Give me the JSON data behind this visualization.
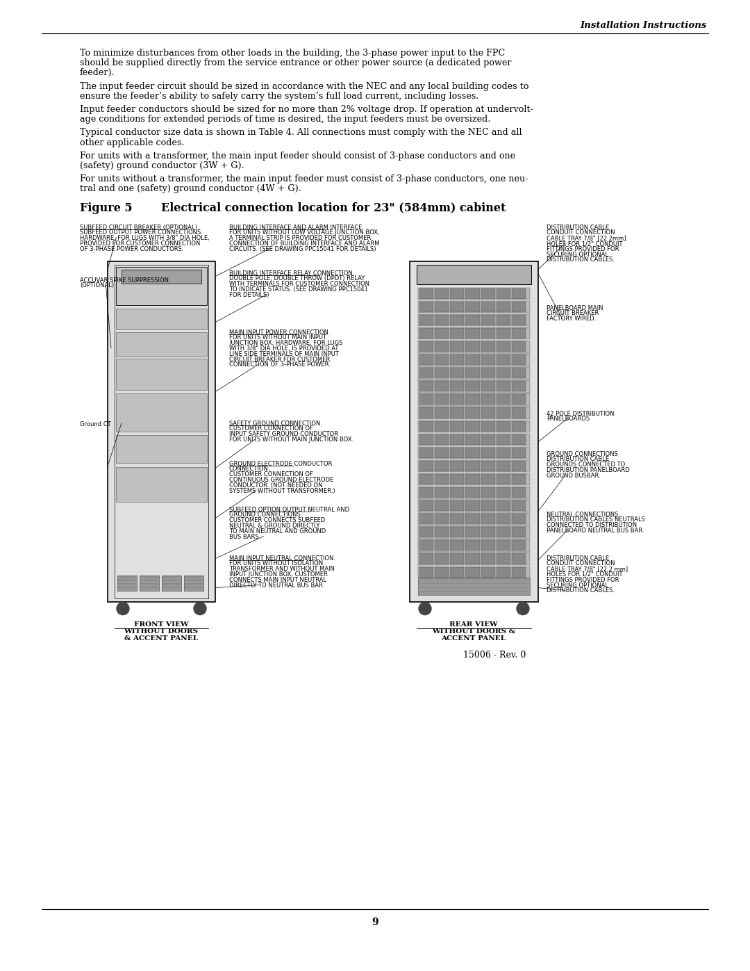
{
  "page_title": "Installation Instructions",
  "page_number": "9",
  "paragraphs": [
    "To minimize disturbances from other loads in the building, the 3-phase power input to the FPC\nshould be supplied directly from the service entrance or other power source (a dedicated power\nfeeder).",
    "The input feeder circuit should be sized in accordance with the NEC and any local building codes to\nensure the feeder’s ability to safely carry the system’s full load current, including losses.",
    "Input feeder conductors should be sized for no more than 2% voltage drop. If operation at undervolt-\nage conditions for extended periods of time is desired, the input feeders must be oversized.",
    "Typical conductor size data is shown in Table 4. All connections must comply with the NEC and all\nother applicable codes.",
    "For units with a transformer, the main input feeder should consist of 3-phase conductors and one\n(safety) ground conductor (3W + G).",
    "For units without a transformer, the main input feeder must consist of 3-phase conductors, one neu-\ntral and one (safety) ground conductor (4W + G)."
  ],
  "figure_label": "Figure 5",
  "figure_title": "Electrical connection location for 23\" (584mm) cabinet",
  "background_color": "#ffffff",
  "text_color": "#000000",
  "front_view_label": "FRONT VIEW\nWITHOUT DOORS\n& ACCENT PANEL",
  "rear_view_label": "REAR VIEW\nWITHOUT DOORS &\nACCENT PANEL",
  "doc_number": "15006 - Rev. 0"
}
